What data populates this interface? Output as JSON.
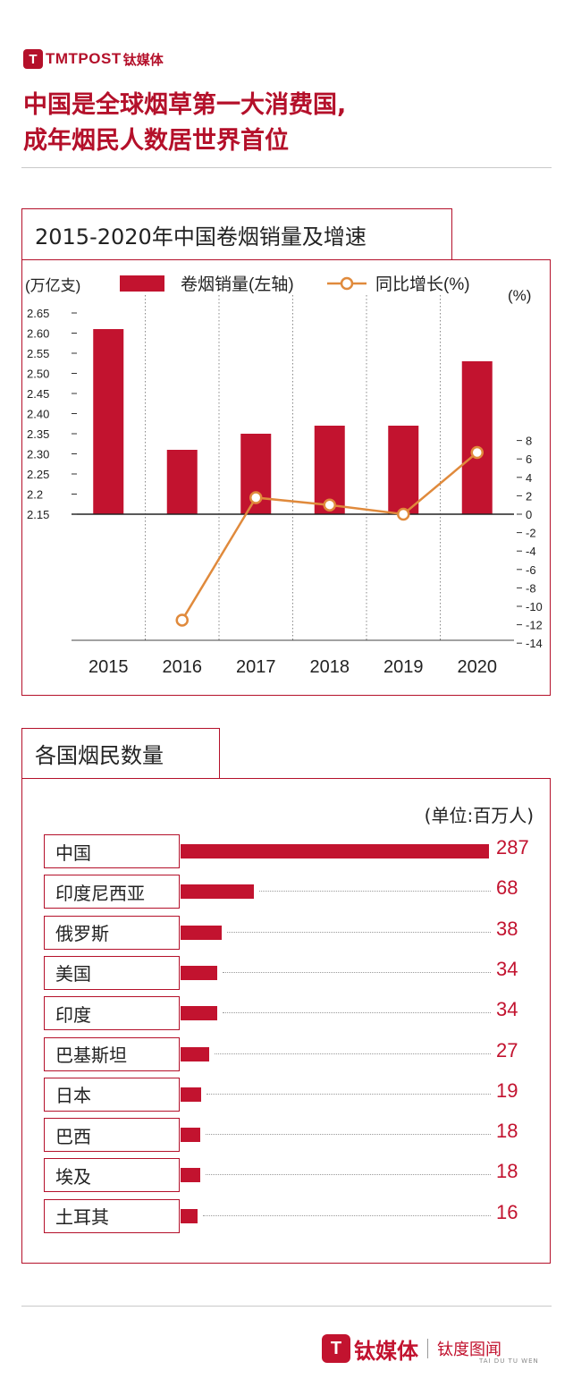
{
  "brand": {
    "mark": "T",
    "name": "TMTPOST",
    "name_cn": "钛媒体"
  },
  "headline": {
    "line1": "中国是全球烟草第一大消费国,",
    "line2": "成年烟民人数居世界首位"
  },
  "colors": {
    "accent": "#b4102a",
    "bar": "#c2132f",
    "line": "#e08a3c"
  },
  "chart_data": [
    {
      "type": "bar+line",
      "title": "2015-2020年中国卷烟销量及增速",
      "categories": [
        "2015",
        "2016",
        "2017",
        "2018",
        "2019",
        "2020"
      ],
      "left_axis": {
        "unit": "(万亿支)",
        "ticks": [
          "2.65",
          "2.60",
          "2.55",
          "2.50",
          "2.45",
          "2.40",
          "2.35",
          "2.30",
          "2.25",
          "2.2",
          "2.15"
        ],
        "range": [
          2.15,
          2.65
        ]
      },
      "right_axis": {
        "unit": "(%)",
        "ticks": [
          "8",
          "6",
          "4",
          "2",
          "0",
          "-2",
          "-4",
          "-6",
          "-8",
          "-10",
          "-12",
          "-14"
        ],
        "range": [
          -14,
          8
        ]
      },
      "legend": {
        "bar_label": "卷烟销量(左轴)",
        "line_label": "同比增长(%)",
        "placement": "top"
      },
      "series": [
        {
          "name": "卷烟销量(左轴)",
          "type": "bar",
          "values": [
            2.61,
            2.31,
            2.35,
            2.37,
            2.37,
            2.53
          ]
        },
        {
          "name": "同比增长(%)",
          "type": "line",
          "values": [
            null,
            -11.5,
            1.8,
            1.0,
            0.0,
            6.7
          ]
        }
      ],
      "grid": "vertical dotted"
    },
    {
      "type": "bar",
      "orientation": "horizontal",
      "title": "各国烟民数量",
      "unit": "(单位:百万人)",
      "categories": [
        "中国",
        "印度尼西亚",
        "俄罗斯",
        "美国",
        "印度",
        "巴基斯坦",
        "日本",
        "巴西",
        "埃及",
        "土耳其"
      ],
      "values": [
        287,
        68,
        38,
        34,
        34,
        27,
        19,
        18,
        18,
        16
      ],
      "value_labels": [
        "287",
        "68",
        "38",
        "34",
        "34",
        "27",
        "19",
        "18",
        "18",
        "16"
      ]
    }
  ],
  "footer": {
    "mark": "T",
    "name_cn": "钛媒体",
    "partner": "钛度图闻",
    "partner_sub": "TAI DU TU WEN"
  }
}
